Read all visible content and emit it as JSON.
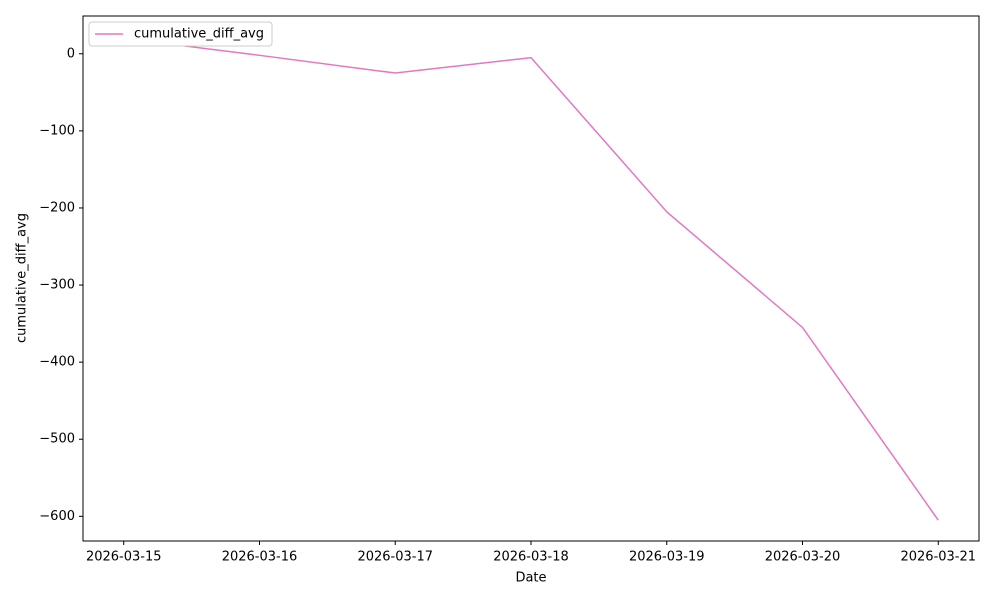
{
  "chart_data": {
    "type": "line",
    "x": [
      "2026-03-15",
      "2026-03-16",
      "2026-03-17",
      "2026-03-18",
      "2026-03-19",
      "2026-03-20",
      "2026-03-21"
    ],
    "series": [
      {
        "name": "cumulative_diff_avg",
        "color": "#e377c2",
        "values": [
          20,
          -2,
          -25,
          -5,
          -205,
          -355,
          -605
        ]
      }
    ],
    "xlabel": "Date",
    "ylabel": "cumulative_diff_avg",
    "ylim": [
      -632,
      49
    ],
    "yticks": [
      {
        "value": -600,
        "label": "−600"
      },
      {
        "value": -500,
        "label": "−500"
      },
      {
        "value": -400,
        "label": "−400"
      },
      {
        "value": -300,
        "label": "−300"
      },
      {
        "value": -200,
        "label": "−200"
      },
      {
        "value": -100,
        "label": "−100"
      },
      0
    ],
    "legend": "upper left"
  }
}
